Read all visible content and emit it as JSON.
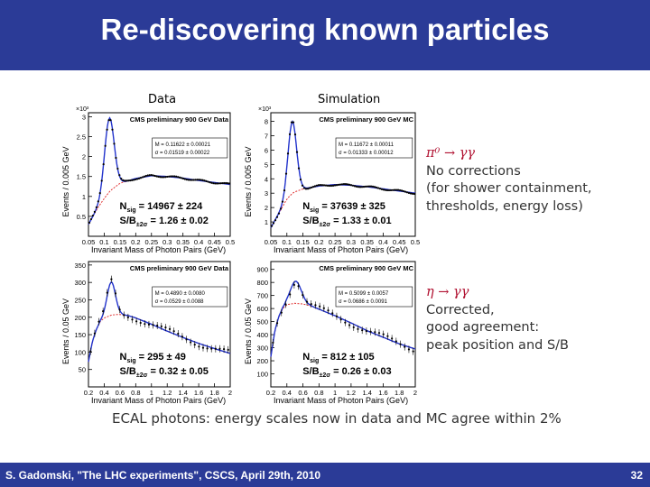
{
  "slide": {
    "title": "Re-discovering known particles",
    "col_data": "Data",
    "col_sim": "Simulation",
    "note_pi0": {
      "process": "π⁰ → γγ",
      "lines": [
        "No corrections",
        "(for  shower  containment,",
        "thresholds, energy loss)"
      ]
    },
    "note_eta": {
      "process": "η → γγ",
      "lines": [
        "Corrected,",
        "good agreement:",
        "peak position and S/B"
      ]
    },
    "caption": "ECAL photons: energy scales now in data and MC agree within 2%",
    "footer": "S. Gadomski, \"The LHC experiments\", CSCS, April 29th, 2010",
    "page": "32"
  },
  "colors": {
    "header_bg": "#2b3b97",
    "fit_line": "#2233cc",
    "background_fit": "#e03030",
    "process_text": "#b01030"
  },
  "chart_data": [
    {
      "type": "scatter",
      "title": "CMS preliminary 900 GeV Data",
      "xlabel": "Invariant Mass of Photon Pairs (GeV)",
      "ylabel": "Events / 0.005 GeV",
      "exponent_label": "×10³",
      "xlim": [
        0.05,
        0.5
      ],
      "ylim": [
        0,
        3.1
      ],
      "xticks": [
        "0.05",
        "0.1",
        "0.15",
        "0.2",
        "0.25",
        "0.3",
        "0.35",
        "0.4",
        "0.45",
        "0.5"
      ],
      "yticks": [
        "0.5",
        "1",
        "1.5",
        "2",
        "2.5",
        "3"
      ],
      "ytick_values": [
        0.5,
        1,
        1.5,
        2,
        2.5,
        3
      ],
      "fit_box": [
        "M = 0.11622 ± 0.00021",
        "σ = 0.01519 ± 0.00022"
      ],
      "nsig_label": "N",
      "nsig_sub": "sig",
      "nsig_value": " = 14967 ± 224",
      "sb_label": "S/B",
      "sb_sub": "±2σ",
      "sb_value": " = 1.26 ± 0.02",
      "signal": {
        "mean": 0.11622,
        "sigma": 0.01519,
        "amp": 1.85
      },
      "background": [
        [
          0.05,
          0.3
        ],
        [
          0.08,
          0.72
        ],
        [
          0.1,
          0.95
        ],
        [
          0.12,
          1.15
        ],
        [
          0.15,
          1.33
        ],
        [
          0.2,
          1.45
        ],
        [
          0.25,
          1.52
        ],
        [
          0.3,
          1.5
        ],
        [
          0.35,
          1.46
        ],
        [
          0.4,
          1.4
        ],
        [
          0.45,
          1.35
        ],
        [
          0.5,
          1.3
        ]
      ]
    },
    {
      "type": "scatter",
      "title": "CMS preliminary 900 GeV MC",
      "xlabel": "Invariant Mass of Photon Pairs (GeV)",
      "ylabel": "Events / 0.005 GeV",
      "exponent_label": "×10³",
      "xlim": [
        0.05,
        0.5
      ],
      "ylim": [
        0,
        8.6
      ],
      "xticks": [
        "0.05",
        "0.1",
        "0.15",
        "0.2",
        "0.25",
        "0.3",
        "0.35",
        "0.4",
        "0.45",
        "0.5"
      ],
      "yticks": [
        "1",
        "2",
        "3",
        "4",
        "5",
        "6",
        "7",
        "8"
      ],
      "ytick_values": [
        1,
        2,
        3,
        4,
        5,
        6,
        7,
        8
      ],
      "fit_box": [
        "M = 0.11672 ± 0.00011",
        "σ = 0.01333 ± 0.00012"
      ],
      "nsig_label": "N",
      "nsig_sub": "sig",
      "nsig_value": " = 37639 ± 325",
      "sb_label": "S/B",
      "sb_sub": "±2σ",
      "sb_value": " = 1.33 ± 0.01",
      "signal": {
        "mean": 0.11672,
        "sigma": 0.01333,
        "amp": 5.0
      },
      "background": [
        [
          0.05,
          0.6
        ],
        [
          0.08,
          1.8
        ],
        [
          0.1,
          2.6
        ],
        [
          0.12,
          3.05
        ],
        [
          0.15,
          3.3
        ],
        [
          0.2,
          3.5
        ],
        [
          0.25,
          3.6
        ],
        [
          0.3,
          3.55
        ],
        [
          0.35,
          3.45
        ],
        [
          0.4,
          3.3
        ],
        [
          0.45,
          3.15
        ],
        [
          0.5,
          3.0
        ]
      ]
    },
    {
      "type": "scatter",
      "title": "CMS preliminary 900 GeV Data",
      "xlabel": "Invariant Mass of Photon Pairs (GeV)",
      "ylabel": "Events / 0.05 GeV",
      "exponent_label": "",
      "xlim": [
        0.2,
        2.0
      ],
      "ylim": [
        0,
        360
      ],
      "xticks": [
        "0.2",
        "0.4",
        "0.6",
        "0.8",
        "1",
        "1.2",
        "1.4",
        "1.6",
        "1.8",
        "2"
      ],
      "yticks": [
        "50",
        "100",
        "150",
        "200",
        "250",
        "300",
        "350"
      ],
      "ytick_values": [
        50,
        100,
        150,
        200,
        250,
        300,
        350
      ],
      "fit_box": [
        "M = 0.4890 ± 0.0080",
        "σ = 0.0529 ± 0.0088"
      ],
      "nsig_label": "N",
      "nsig_sub": "sig",
      "nsig_value": " = 295 ± 49",
      "sb_label": "S/B",
      "sb_sub": "±2σ",
      "sb_value": " = 0.32 ± 0.05",
      "signal": {
        "mean": 0.489,
        "sigma": 0.0529,
        "amp": 95
      },
      "background": [
        [
          0.2,
          72
        ],
        [
          0.25,
          130
        ],
        [
          0.3,
          165
        ],
        [
          0.35,
          188
        ],
        [
          0.4,
          198
        ],
        [
          0.5,
          207
        ],
        [
          0.6,
          208
        ],
        [
          0.7,
          205
        ],
        [
          0.8,
          198
        ],
        [
          1.0,
          180
        ],
        [
          1.2,
          160
        ],
        [
          1.4,
          142
        ],
        [
          1.6,
          125
        ],
        [
          1.8,
          110
        ],
        [
          2.0,
          96
        ]
      ]
    },
    {
      "type": "scatter",
      "title": "CMS preliminary 900 GeV MC",
      "xlabel": "Invariant Mass of Photon Pairs (GeV)",
      "ylabel": "Events / 0.05 GeV",
      "exponent_label": "",
      "xlim": [
        0.2,
        2.0
      ],
      "ylim": [
        0,
        960
      ],
      "xticks": [
        "0.2",
        "0.4",
        "0.6",
        "0.8",
        "1",
        "1.2",
        "1.4",
        "1.6",
        "1.8",
        "2"
      ],
      "yticks": [
        "100",
        "200",
        "300",
        "400",
        "500",
        "600",
        "700",
        "800",
        "900"
      ],
      "ytick_values": [
        100,
        200,
        300,
        400,
        500,
        600,
        700,
        800,
        900
      ],
      "fit_box": [
        "M = 0.5099 ± 0.0057",
        "σ = 0.0686 ± 0.0091"
      ],
      "nsig_label": "N",
      "nsig_sub": "sig",
      "nsig_value": " = 812 ± 105",
      "sb_label": "S/B",
      "sb_sub": "±2σ",
      "sb_value": " = 0.26 ± 0.03",
      "signal": {
        "mean": 0.5099,
        "sigma": 0.0686,
        "amp": 170
      },
      "background": [
        [
          0.2,
          230
        ],
        [
          0.25,
          430
        ],
        [
          0.3,
          540
        ],
        [
          0.35,
          600
        ],
        [
          0.4,
          630
        ],
        [
          0.5,
          640
        ],
        [
          0.6,
          635
        ],
        [
          0.7,
          620
        ],
        [
          0.8,
          595
        ],
        [
          1.0,
          545
        ],
        [
          1.2,
          490
        ],
        [
          1.4,
          430
        ],
        [
          1.6,
          380
        ],
        [
          1.8,
          330
        ],
        [
          2.0,
          290
        ]
      ]
    }
  ]
}
